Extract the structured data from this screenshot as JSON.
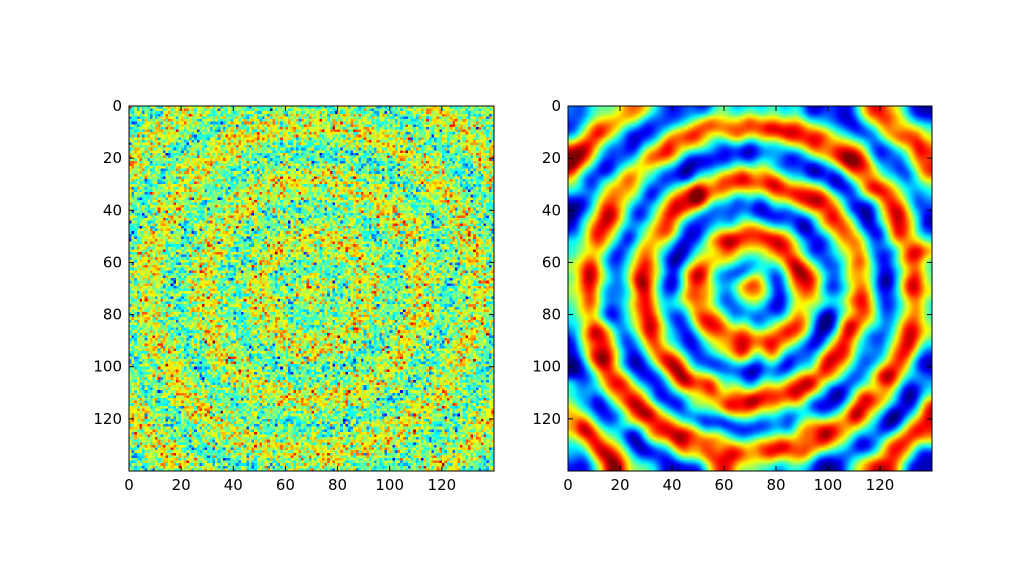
{
  "chart_data": [
    {
      "type": "heatmap",
      "title": "",
      "xlabel": "",
      "ylabel": "",
      "xlim": [
        0,
        140
      ],
      "ylim": [
        140,
        0
      ],
      "xticks": [
        0,
        20,
        40,
        60,
        80,
        100,
        120
      ],
      "yticks": [
        0,
        20,
        40,
        60,
        80,
        100,
        120
      ],
      "colormap": "jet",
      "grid": false,
      "pattern": "concentric rings centred near (70, 70) with strong per-pixel noise",
      "rings": {
        "center": [
          70,
          70
        ],
        "period": 21,
        "noise": "high",
        "contrast": "low"
      }
    },
    {
      "type": "heatmap",
      "title": "",
      "xlabel": "",
      "ylabel": "",
      "xlim": [
        0,
        140
      ],
      "ylim": [
        140,
        0
      ],
      "xticks": [
        0,
        20,
        40,
        60,
        80,
        100,
        120
      ],
      "yticks": [
        0,
        20,
        40,
        60,
        80,
        100,
        120
      ],
      "colormap": "jet",
      "grid": false,
      "pattern": "smoothed concentric rings centred near (70, 70)",
      "rings": {
        "center": [
          70,
          70
        ],
        "period": 21,
        "noise": "smoothed",
        "contrast": "high"
      }
    }
  ]
}
